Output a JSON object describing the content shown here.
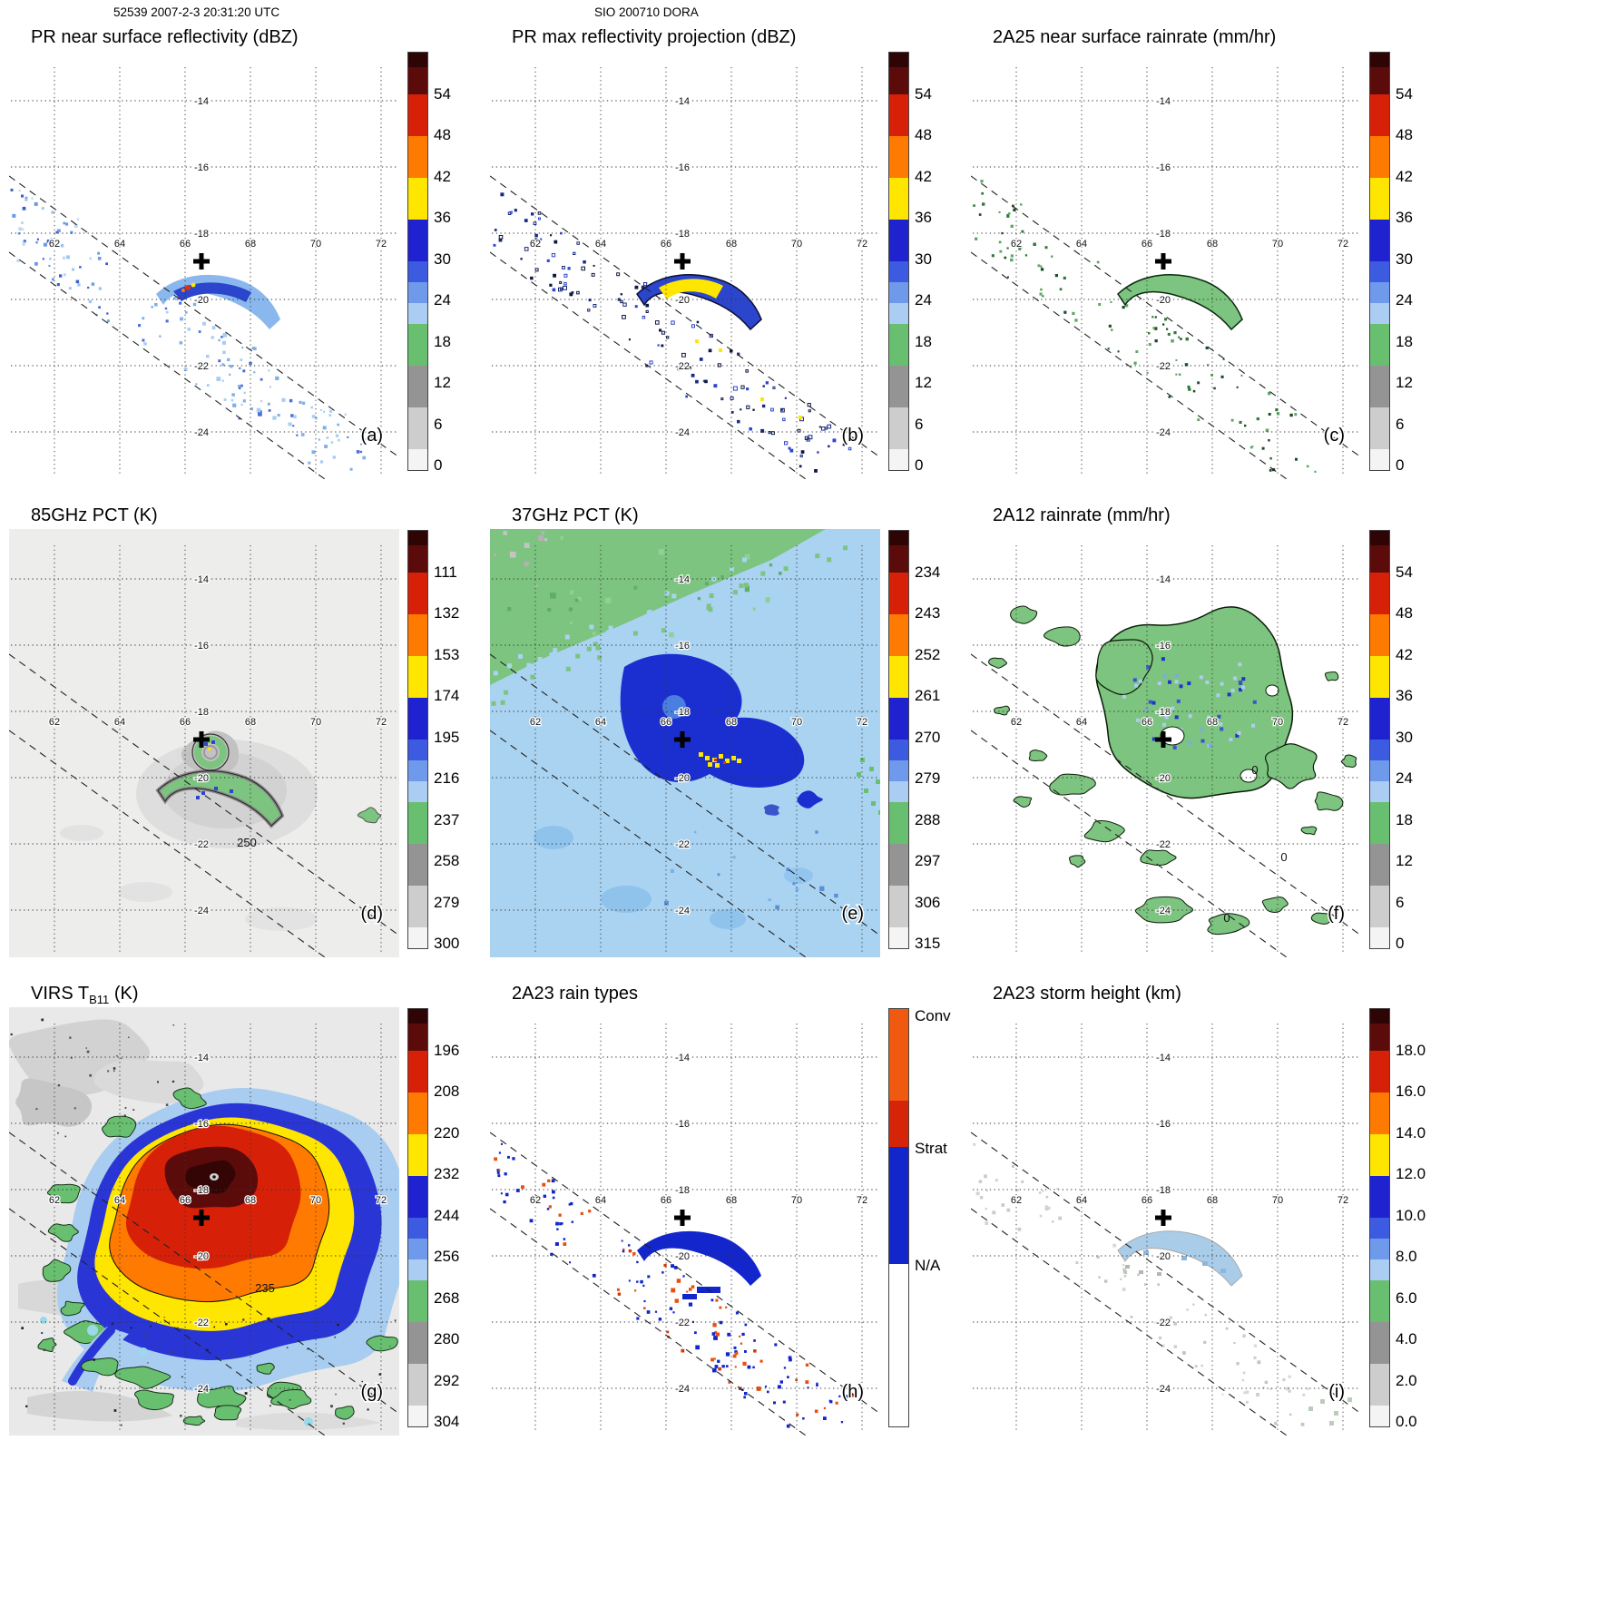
{
  "header": {
    "left": "52539 2007-2-3 20:31:20 UTC",
    "center": "SIO 200710 DORA"
  },
  "map_grid": {
    "lat_labels": [
      "-14",
      "-16",
      "-18",
      "-20",
      "-22",
      "-24"
    ],
    "lon_labels": [
      "62",
      "64",
      "66",
      "68",
      "70",
      "72"
    ]
  },
  "panels": [
    {
      "id": "a",
      "title": "PR near surface reflectivity (dBZ)",
      "letter": "(a)",
      "scale": "dbz"
    },
    {
      "id": "b",
      "title": "PR max reflectivity projection (dBZ)",
      "letter": "(b)",
      "scale": "dbz"
    },
    {
      "id": "c",
      "title": "2A25 near surface rainrate (mm/hr)",
      "letter": "(c)",
      "scale": "rain"
    },
    {
      "id": "d",
      "title": "85GHz PCT (K)",
      "letter": "(d)",
      "scale": "pct85",
      "annotation": "250"
    },
    {
      "id": "e",
      "title": "37GHz PCT (K)",
      "letter": "(e)",
      "scale": "pct37"
    },
    {
      "id": "f",
      "title": "2A12 rainrate (mm/hr)",
      "letter": "(f)",
      "scale": "rain",
      "annotations": [
        "0",
        "0",
        "0"
      ]
    },
    {
      "id": "g",
      "title_pre": "VIRS T",
      "title_sub": "B11",
      "title_post": " (K)",
      "letter": "(g)",
      "scale": "virs",
      "annotation": "235"
    },
    {
      "id": "h",
      "title": "2A23 rain types",
      "letter": "(h)",
      "scale": "raintype"
    },
    {
      "id": "i",
      "title": "2A23 storm height (km)",
      "letter": "(i)",
      "scale": "height"
    }
  ],
  "colorbars": {
    "dbz": {
      "type": "rainbow",
      "ticks": [
        "54",
        "48",
        "42",
        "36",
        "30",
        "24",
        "18",
        "12",
        "6",
        "0"
      ]
    },
    "rain": {
      "type": "rainbow",
      "ticks": [
        "54",
        "48",
        "42",
        "36",
        "30",
        "24",
        "18",
        "12",
        "6",
        "0"
      ]
    },
    "pct85": {
      "type": "rainbow",
      "ticks": [
        "111",
        "132",
        "153",
        "174",
        "195",
        "216",
        "237",
        "258",
        "279",
        "300"
      ]
    },
    "pct37": {
      "type": "rainbow",
      "ticks": [
        "234",
        "243",
        "252",
        "261",
        "270",
        "279",
        "288",
        "297",
        "306",
        "315"
      ]
    },
    "virs": {
      "type": "rainbow",
      "ticks": [
        "196",
        "208",
        "220",
        "232",
        "244",
        "256",
        "268",
        "280",
        "292",
        "304"
      ]
    },
    "height": {
      "type": "rainbow",
      "ticks": [
        "18.0",
        "16.0",
        "14.0",
        "12.0",
        "10.0",
        "8.0",
        "6.0",
        "4.0",
        "2.0",
        "0.0"
      ]
    },
    "raintype": {
      "type": "raintype",
      "labels": [
        "Conv",
        "Strat",
        "N/A"
      ]
    }
  },
  "colors": {
    "rainbow_segments": [
      {
        "color": "#2e0404",
        "f": 0.035
      },
      {
        "color": "#5c0b0b",
        "f": 0.065
      },
      {
        "color": "#d62108",
        "f": 0.1
      },
      {
        "color": "#ff7a00",
        "f": 0.1
      },
      {
        "color": "#ffe600",
        "f": 0.1
      },
      {
        "color": "#1e23cf",
        "f": 0.1
      },
      {
        "color": "#3d5be0",
        "f": 0.05
      },
      {
        "color": "#6f9aeb",
        "f": 0.05
      },
      {
        "color": "#abcdf4",
        "f": 0.05
      },
      {
        "color": "#69bf70",
        "f": 0.1
      },
      {
        "color": "#949494",
        "f": 0.1
      },
      {
        "color": "#cdcdcd",
        "f": 0.1
      },
      {
        "color": "#f4f4f4",
        "f": 0.05
      }
    ],
    "raintype_segments": [
      {
        "color": "#f05a10",
        "f": 0.22
      },
      {
        "color": "#d62408",
        "f": 0.11
      },
      {
        "color": "#1226cc",
        "f": 0.28
      },
      {
        "color": "#ffffff",
        "f": 0.39
      }
    ]
  },
  "chart_data": [
    {
      "panel": "(a)",
      "type": "heatmap",
      "title": "PR near surface reflectivity (dBZ)",
      "units": "dBZ",
      "colorbar_ticks": [
        54,
        48,
        42,
        36,
        30,
        24,
        18,
        12,
        6,
        0
      ],
      "lon_gridlines": [
        62,
        64,
        66,
        68,
        70,
        72
      ],
      "lat_gridlines": [
        -14,
        -16,
        -18,
        -20,
        -22,
        -24
      ],
      "storm_center_marker_lonlat": [
        67.3,
        -18.8
      ]
    },
    {
      "panel": "(b)",
      "type": "heatmap",
      "title": "PR max reflectivity projection (dBZ)",
      "units": "dBZ",
      "colorbar_ticks": [
        54,
        48,
        42,
        36,
        30,
        24,
        18,
        12,
        6,
        0
      ]
    },
    {
      "panel": "(c)",
      "type": "heatmap",
      "title": "2A25 near surface rainrate (mm/hr)",
      "units": "mm/hr",
      "colorbar_ticks": [
        54,
        48,
        42,
        36,
        30,
        24,
        18,
        12,
        6,
        0
      ]
    },
    {
      "panel": "(d)",
      "type": "heatmap",
      "title": "85GHz PCT (K)",
      "units": "K",
      "colorbar_ticks": [
        111,
        132,
        153,
        174,
        195,
        216,
        237,
        258,
        279,
        300
      ],
      "contour_label": 250
    },
    {
      "panel": "(e)",
      "type": "heatmap",
      "title": "37GHz PCT (K)",
      "units": "K",
      "colorbar_ticks": [
        234,
        243,
        252,
        261,
        270,
        279,
        288,
        297,
        306,
        315
      ]
    },
    {
      "panel": "(f)",
      "type": "heatmap",
      "title": "2A12 rainrate (mm/hr)",
      "units": "mm/hr",
      "colorbar_ticks": [
        54,
        48,
        42,
        36,
        30,
        24,
        18,
        12,
        6,
        0
      ],
      "contour_labels": [
        0,
        0,
        0
      ]
    },
    {
      "panel": "(g)",
      "type": "heatmap",
      "title": "VIRS TB11 (K)",
      "units": "K",
      "colorbar_ticks": [
        196,
        208,
        220,
        232,
        244,
        256,
        268,
        280,
        292,
        304
      ],
      "contour_label": 235
    },
    {
      "panel": "(h)",
      "type": "categorical-map",
      "title": "2A23 rain types",
      "categories": [
        "Conv",
        "Strat",
        "N/A"
      ]
    },
    {
      "panel": "(i)",
      "type": "heatmap",
      "title": "2A23 storm height (km)",
      "units": "km",
      "colorbar_ticks": [
        18.0,
        16.0,
        14.0,
        12.0,
        10.0,
        8.0,
        6.0,
        4.0,
        2.0,
        0.0
      ]
    }
  ]
}
